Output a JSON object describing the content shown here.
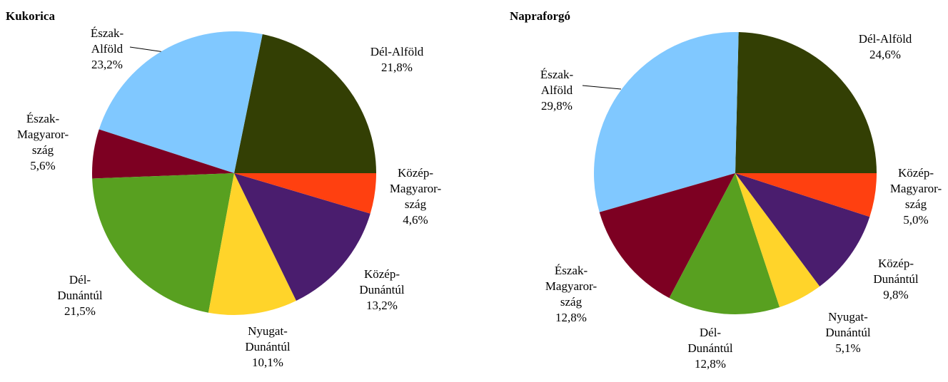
{
  "chart_data": [
    {
      "type": "pie",
      "title": "Kukorica",
      "categories": [
        "Dél-Alföld",
        "Észak-\nAlföld",
        "Észak-\nMagyaror-\nszág",
        "Dél-\nDunántúl",
        "Nyugat-\nDunántúl",
        "Közép-\nDunántúl",
        "Közép-\nMagyaror-\nszág"
      ],
      "values": [
        21.8,
        23.2,
        5.6,
        21.5,
        10.1,
        13.2,
        4.6
      ],
      "value_labels": [
        "21,8%",
        "23,2%",
        "5,6%",
        "21,5%",
        "10,1%",
        "13,2%",
        "4,6%"
      ],
      "colors": [
        "#333f04",
        "#80c8ff",
        "#7d0022",
        "#58a020",
        "#ffd42a",
        "#4a1d6e",
        "#ff4010"
      ]
    },
    {
      "type": "pie",
      "title": "Napraforgó",
      "categories": [
        "Dél-Alföld",
        "Észak-\nAlföld",
        "Észak-\nMagyaror-\nszág",
        "Dél-\nDunántúl",
        "Nyugat-\nDunántúl",
        "Közép-\nDunántúl",
        "Közép-\nMagyaror-\nszág"
      ],
      "values": [
        24.6,
        29.8,
        12.8,
        12.8,
        5.1,
        9.8,
        5.0
      ],
      "value_labels": [
        "24,6%",
        "29,8%",
        "12,8%",
        "12,8%",
        "5,1%",
        "9,8%",
        "5,0%"
      ],
      "colors": [
        "#333f04",
        "#80c8ff",
        "#7d0022",
        "#58a020",
        "#ffd42a",
        "#4a1d6e",
        "#ff4010"
      ]
    }
  ]
}
